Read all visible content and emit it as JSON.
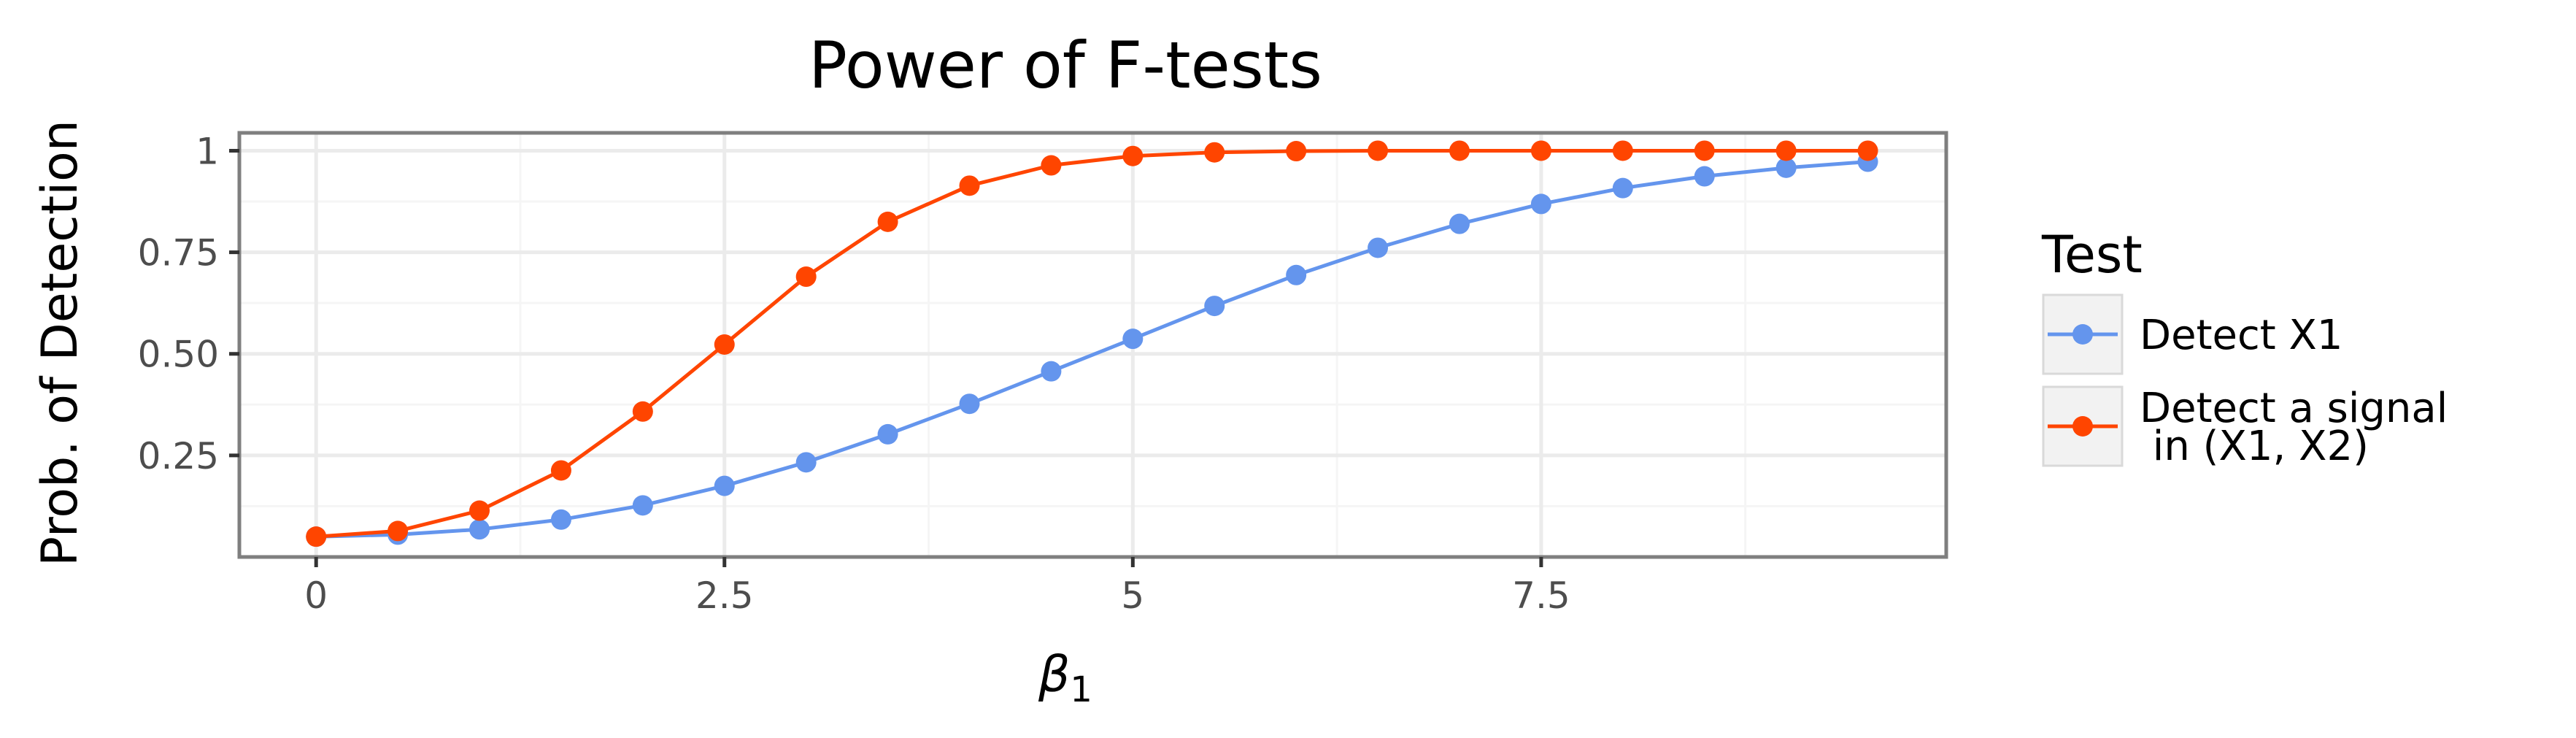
{
  "chart_data": {
    "type": "line",
    "title": "Power of F-tests",
    "xlabel": "β",
    "xlabel_subscript": "1",
    "ylabel": "Prob. of Detection",
    "xlim": [
      -0.47,
      9.98
    ],
    "ylim": [
      0.0,
      1.044
    ],
    "x_ticks": [
      0,
      2.5,
      5,
      7.5
    ],
    "x_tick_labels": [
      "0",
      "2.5",
      "5",
      "7.5"
    ],
    "y_ticks": [
      0.25,
      0.5,
      0.75,
      1.0
    ],
    "y_tick_labels": [
      "0.25",
      "0.50",
      "0.75",
      "1"
    ],
    "grid": true,
    "legend_title": "Test",
    "legend_position": "right",
    "x": [
      0,
      0.5,
      1,
      1.5,
      2,
      2.5,
      3,
      3.5,
      4,
      4.5,
      5,
      5.5,
      6,
      6.5,
      7,
      7.5,
      8,
      8.5,
      9,
      9.5
    ],
    "series": [
      {
        "name": "Detect X1",
        "color": "#6495ED",
        "values": [
          0.05,
          0.055,
          0.068,
          0.092,
          0.127,
          0.175,
          0.233,
          0.302,
          0.377,
          0.457,
          0.537,
          0.618,
          0.694,
          0.761,
          0.82,
          0.869,
          0.908,
          0.937,
          0.958,
          0.973
        ]
      },
      {
        "name": "Detect a signal\n in (X1, X2)",
        "color": "#FF4500",
        "values": [
          0.05,
          0.064,
          0.114,
          0.213,
          0.358,
          0.523,
          0.69,
          0.825,
          0.914,
          0.964,
          0.987,
          0.996,
          0.999,
          1.0,
          1.0,
          1.0,
          1.0,
          1.0,
          1.0,
          1.0
        ]
      }
    ]
  },
  "colors": {
    "panel_border": "#7f7f7f",
    "grid_major": "#ebebeb",
    "grid_minor": "#f5f5f5",
    "tick_text": "#4d4d4d",
    "legend_key_bg": "#f2f2f2",
    "legend_key_border": "#d9d9d9"
  }
}
